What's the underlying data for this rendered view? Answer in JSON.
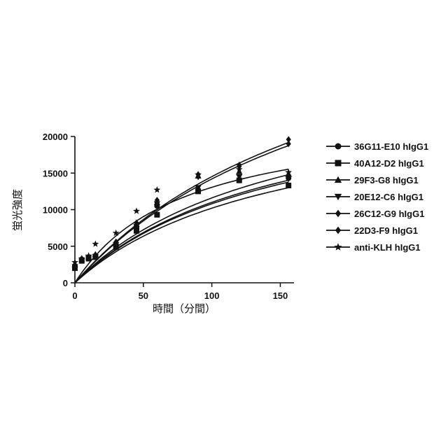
{
  "chart_data": {
    "type": "scatter",
    "title": "",
    "xlabel": "時間（分間）",
    "ylabel": "蛍光強度",
    "xlim": [
      0,
      160
    ],
    "ylim": [
      0,
      20000
    ],
    "xticks": [
      0,
      50,
      100,
      150
    ],
    "yticks": [
      0,
      5000,
      10000,
      15000,
      20000
    ],
    "grid": false,
    "legend_position": "right",
    "series": [
      {
        "name": "36G11-E10 hIgG1",
        "marker": "circle",
        "x": [
          0,
          5,
          10,
          15,
          30,
          45,
          60,
          90,
          120,
          156
        ],
        "y": [
          2300,
          3200,
          3400,
          3700,
          5100,
          7600,
          10500,
          12700,
          14100,
          14300
        ],
        "fit_ymax": 27000,
        "fit_k": 150
      },
      {
        "name": "40A12-D2 hIgG1",
        "marker": "square",
        "x": [
          0,
          5,
          10,
          15,
          30,
          45,
          60,
          90,
          120,
          156
        ],
        "y": [
          2000,
          3000,
          3300,
          3500,
          4900,
          7100,
          9300,
          12500,
          14000,
          13300
        ],
        "fit_ymax": 25500,
        "fit_k": 150
      },
      {
        "name": "29F3-G8 hIgG1",
        "marker": "triangle-up",
        "x": [
          0,
          5,
          10,
          15,
          30,
          45,
          60,
          90,
          120,
          156
        ],
        "y": [
          2500,
          3200,
          3500,
          3900,
          5500,
          8000,
          11000,
          14600,
          15200,
          14900
        ],
        "fit_ymax": 29000,
        "fit_k": 150
      },
      {
        "name": "20E12-C6 hIgG1",
        "marker": "triangle-down",
        "x": [
          0,
          5,
          10,
          15,
          30,
          45,
          60,
          90,
          120,
          156
        ],
        "y": [
          2200,
          3100,
          3400,
          3600,
          5200,
          7700,
          10800,
          13000,
          14500,
          14200
        ],
        "fit_ymax": 27500,
        "fit_k": 150
      },
      {
        "name": "26C12-G9 hIgG1",
        "marker": "diamond",
        "x": [
          0,
          5,
          10,
          15,
          30,
          45,
          60,
          90,
          120,
          156
        ],
        "y": [
          2400,
          3300,
          3500,
          3800,
          5600,
          8200,
          11300,
          14800,
          16100,
          19600
        ],
        "fit_ymax": 45000,
        "fit_k": 210
      },
      {
        "name": "22D3-F9 hIgG1",
        "marker": "diamond",
        "x": [
          0,
          5,
          10,
          15,
          30,
          45,
          60,
          90,
          120,
          156
        ],
        "y": [
          2300,
          3100,
          3400,
          3700,
          5400,
          7900,
          11000,
          14500,
          15900,
          19000
        ],
        "fit_ymax": 44000,
        "fit_k": 210
      },
      {
        "name": "anti-KLH hIgG1",
        "marker": "star",
        "x": [
          0,
          5,
          10,
          15,
          30,
          45,
          60,
          90,
          120,
          156
        ],
        "y": [
          2800,
          3300,
          3700,
          5300,
          6800,
          9800,
          12700,
          14800,
          15500,
          15100
        ],
        "fit_ymax": 23500,
        "fit_k": 80
      }
    ]
  }
}
